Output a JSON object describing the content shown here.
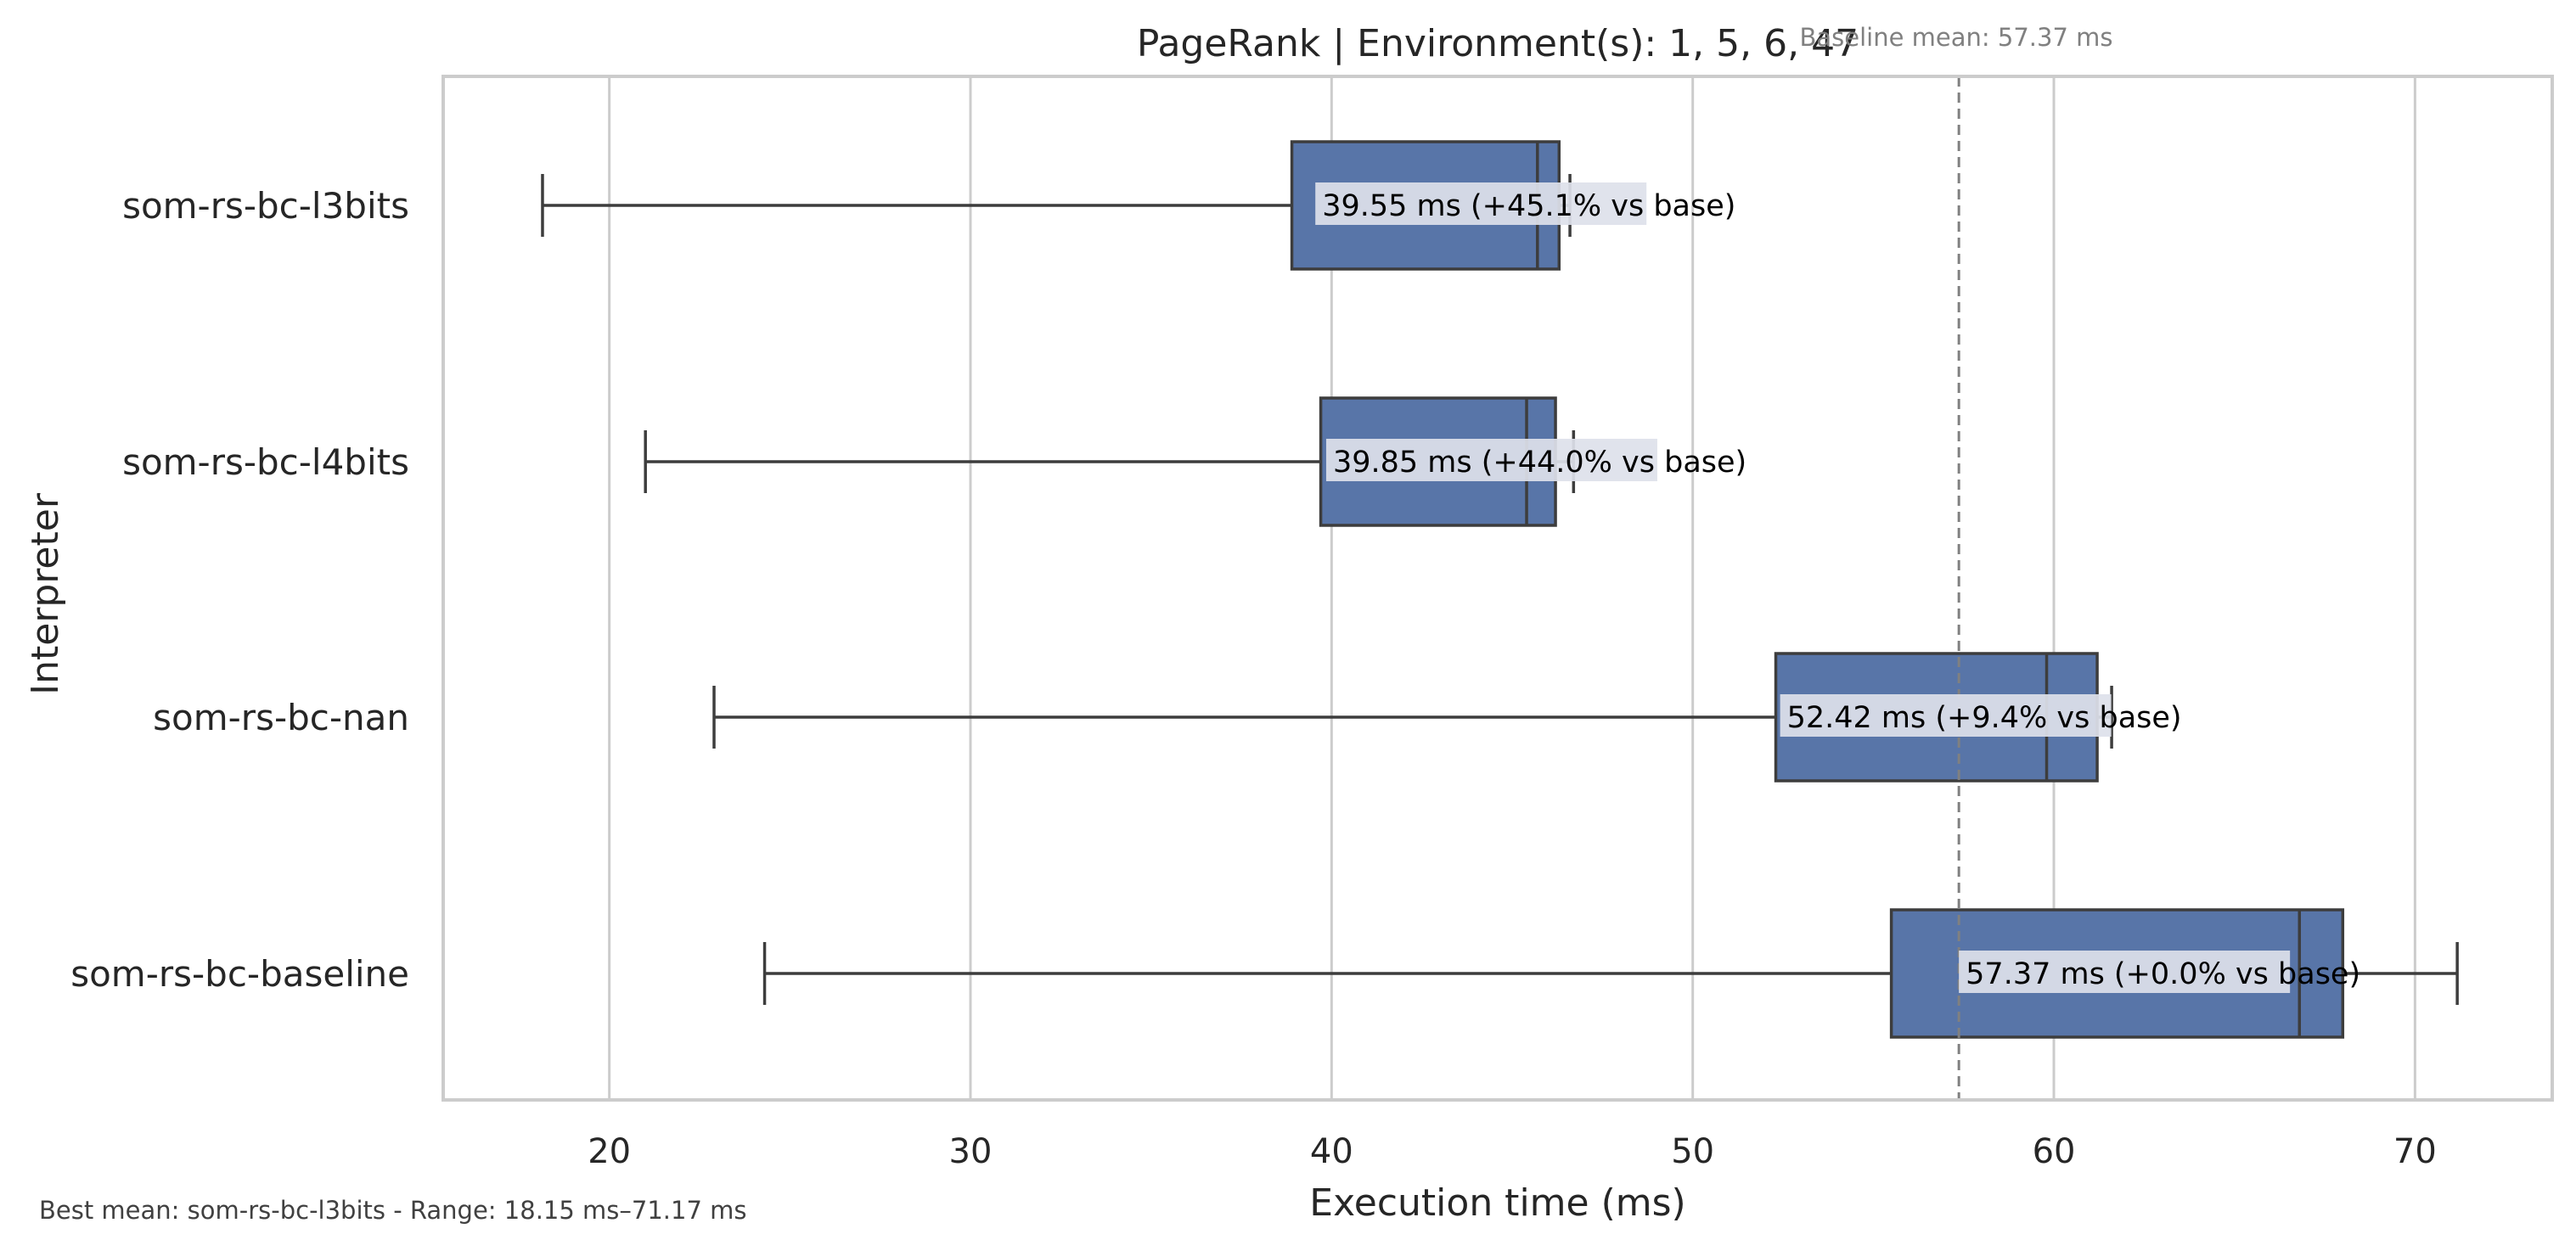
{
  "chart_data": {
    "type": "box",
    "orientation": "horizontal",
    "title": "PageRank | Environment(s): 1, 5, 6, 47",
    "xlabel": "Execution time (ms)",
    "ylabel": "Interpreter",
    "xlim": [
      15.4,
      73.8
    ],
    "xticks": [
      20,
      30,
      40,
      50,
      60,
      70
    ],
    "grid": "vertical",
    "categories": [
      "som-rs-bc-l3bits",
      "som-rs-bc-l4bits",
      "som-rs-bc-nan",
      "som-rs-bc-baseline"
    ],
    "boxes": [
      {
        "category": "som-rs-bc-l3bits",
        "whisker_low": 18.15,
        "q1": 38.9,
        "median": 45.7,
        "q3": 46.3,
        "whisker_high": 46.6,
        "mean": 39.55,
        "annotation": "39.55 ms  (+45.1% vs base)"
      },
      {
        "category": "som-rs-bc-l4bits",
        "whisker_low": 21.0,
        "q1": 39.7,
        "median": 45.4,
        "q3": 46.2,
        "whisker_high": 46.7,
        "mean": 39.85,
        "annotation": "39.85 ms  (+44.0% vs base)"
      },
      {
        "category": "som-rs-bc-nan",
        "whisker_low": 22.9,
        "q1": 52.3,
        "median": 59.8,
        "q3": 61.2,
        "whisker_high": 61.6,
        "mean": 52.42,
        "annotation": "52.42 ms  (+9.4% vs base)"
      },
      {
        "category": "som-rs-bc-baseline",
        "whisker_low": 24.3,
        "q1": 55.5,
        "median": 66.8,
        "q3": 68.0,
        "whisker_high": 71.17,
        "mean": 57.37,
        "annotation": "57.37 ms  (+0.0% vs base)"
      }
    ],
    "baseline": {
      "value": 57.37,
      "label": "Baseline mean: 57.37 ms"
    },
    "footer": "Best mean: som-rs-bc-l3bits - Range: 18.15 ms–71.17 ms",
    "colors": {
      "box_fill": "#5875a8",
      "box_edge": "#3d3d3d",
      "grid": "#cccccc",
      "frame": "#cccccc",
      "baseline": "#808080",
      "label_bg": "#dde1ea"
    }
  }
}
